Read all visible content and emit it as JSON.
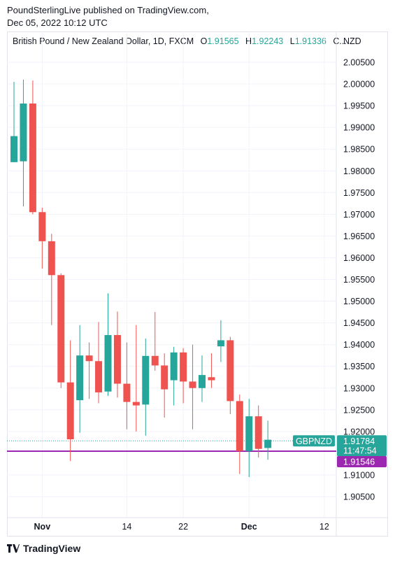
{
  "publisher": {
    "line1": "PoundSterlingLive published on TradingView.com,",
    "line2": "Dec 05, 2022 10:12 UTC"
  },
  "header": {
    "symbol_desc": "British Pound / New Zealand Dollar, 1D, FXCM",
    "o_label": "O",
    "o_value": "1.91565",
    "h_label": "H",
    "h_value": "1.92243",
    "l_label": "L",
    "l_value": "1.91336",
    "c_label": "C..."
  },
  "currency": "NZD",
  "brand": "TradingView",
  "colors": {
    "up": "#26a69a",
    "down": "#ef5350",
    "level": "#9c27b0",
    "grid": "#f0f3fa"
  },
  "chart_data": {
    "type": "candlestick",
    "ylim": [
      1.9015,
      2.0105
    ],
    "y_ticks": [
      "2.00500",
      "2.00000",
      "1.99500",
      "1.99000",
      "1.98500",
      "1.98000",
      "1.97500",
      "1.97000",
      "1.96500",
      "1.96000",
      "1.95500",
      "1.95000",
      "1.94500",
      "1.94000",
      "1.93500",
      "1.93000",
      "1.92500",
      "1.92000",
      "1.91000",
      "1.90500"
    ],
    "x_ticks": [
      {
        "label": "Nov",
        "index": 3
      },
      {
        "label": "14",
        "index": 12
      },
      {
        "label": "22",
        "index": 18
      },
      {
        "label": "Dec",
        "index": 25
      },
      {
        "label": "12",
        "index": 33
      }
    ],
    "candles": [
      {
        "o": 1.982,
        "h": 2.0005,
        "l": 1.982,
        "c": 1.988
      },
      {
        "o": 1.9822,
        "h": 2.001,
        "l": 1.9718,
        "c": 1.9955
      },
      {
        "o": 1.9955,
        "h": 2.0008,
        "l": 1.97,
        "c": 1.9705
      },
      {
        "o": 1.9705,
        "h": 1.9715,
        "l": 1.9575,
        "c": 1.9638
      },
      {
        "o": 1.9638,
        "h": 1.9655,
        "l": 1.9445,
        "c": 1.956
      },
      {
        "o": 1.956,
        "h": 1.9564,
        "l": 1.93,
        "c": 1.9313
      },
      {
        "o": 1.9313,
        "h": 1.941,
        "l": 1.9132,
        "c": 1.9182
      },
      {
        "o": 1.9272,
        "h": 1.9445,
        "l": 1.9197,
        "c": 1.9375
      },
      {
        "o": 1.9375,
        "h": 1.9405,
        "l": 1.9275,
        "c": 1.9362
      },
      {
        "o": 1.9362,
        "h": 1.9452,
        "l": 1.9265,
        "c": 1.929
      },
      {
        "o": 1.9292,
        "h": 1.9518,
        "l": 1.9282,
        "c": 1.9422
      },
      {
        "o": 1.9422,
        "h": 1.9476,
        "l": 1.9278,
        "c": 1.931
      },
      {
        "o": 1.931,
        "h": 1.9405,
        "l": 1.9205,
        "c": 1.9268
      },
      {
        "o": 1.9268,
        "h": 1.9445,
        "l": 1.92,
        "c": 1.926
      },
      {
        "o": 1.9262,
        "h": 1.9414,
        "l": 1.919,
        "c": 1.9374
      },
      {
        "o": 1.9374,
        "h": 1.9475,
        "l": 1.934,
        "c": 1.9352
      },
      {
        "o": 1.9352,
        "h": 1.938,
        "l": 1.9232,
        "c": 1.9297
      },
      {
        "o": 1.9318,
        "h": 1.9395,
        "l": 1.926,
        "c": 1.9382
      },
      {
        "o": 1.9382,
        "h": 1.9392,
        "l": 1.9265,
        "c": 1.9315
      },
      {
        "o": 1.9315,
        "h": 1.94,
        "l": 1.9205,
        "c": 1.93
      },
      {
        "o": 1.93,
        "h": 1.9375,
        "l": 1.9268,
        "c": 1.933
      },
      {
        "o": 1.9325,
        "h": 1.938,
        "l": 1.93,
        "c": 1.9318
      },
      {
        "o": 1.9396,
        "h": 1.9456,
        "l": 1.936,
        "c": 1.941
      },
      {
        "o": 1.941,
        "h": 1.9418,
        "l": 1.924,
        "c": 1.927
      },
      {
        "o": 1.927,
        "h": 1.9285,
        "l": 1.9102,
        "c": 1.9155
      },
      {
        "o": 1.9155,
        "h": 1.9275,
        "l": 1.9095,
        "c": 1.9235
      },
      {
        "o": 1.9235,
        "h": 1.926,
        "l": 1.914,
        "c": 1.916
      },
      {
        "o": 1.9162,
        "h": 1.9225,
        "l": 1.9135,
        "c": 1.9181
      }
    ],
    "last_price": {
      "label": "GBPNZD",
      "value": "1.91784",
      "countdown": "11:47:54",
      "y": 1.91784
    },
    "level_line": {
      "value": "1.91546",
      "y": 1.91546
    }
  }
}
